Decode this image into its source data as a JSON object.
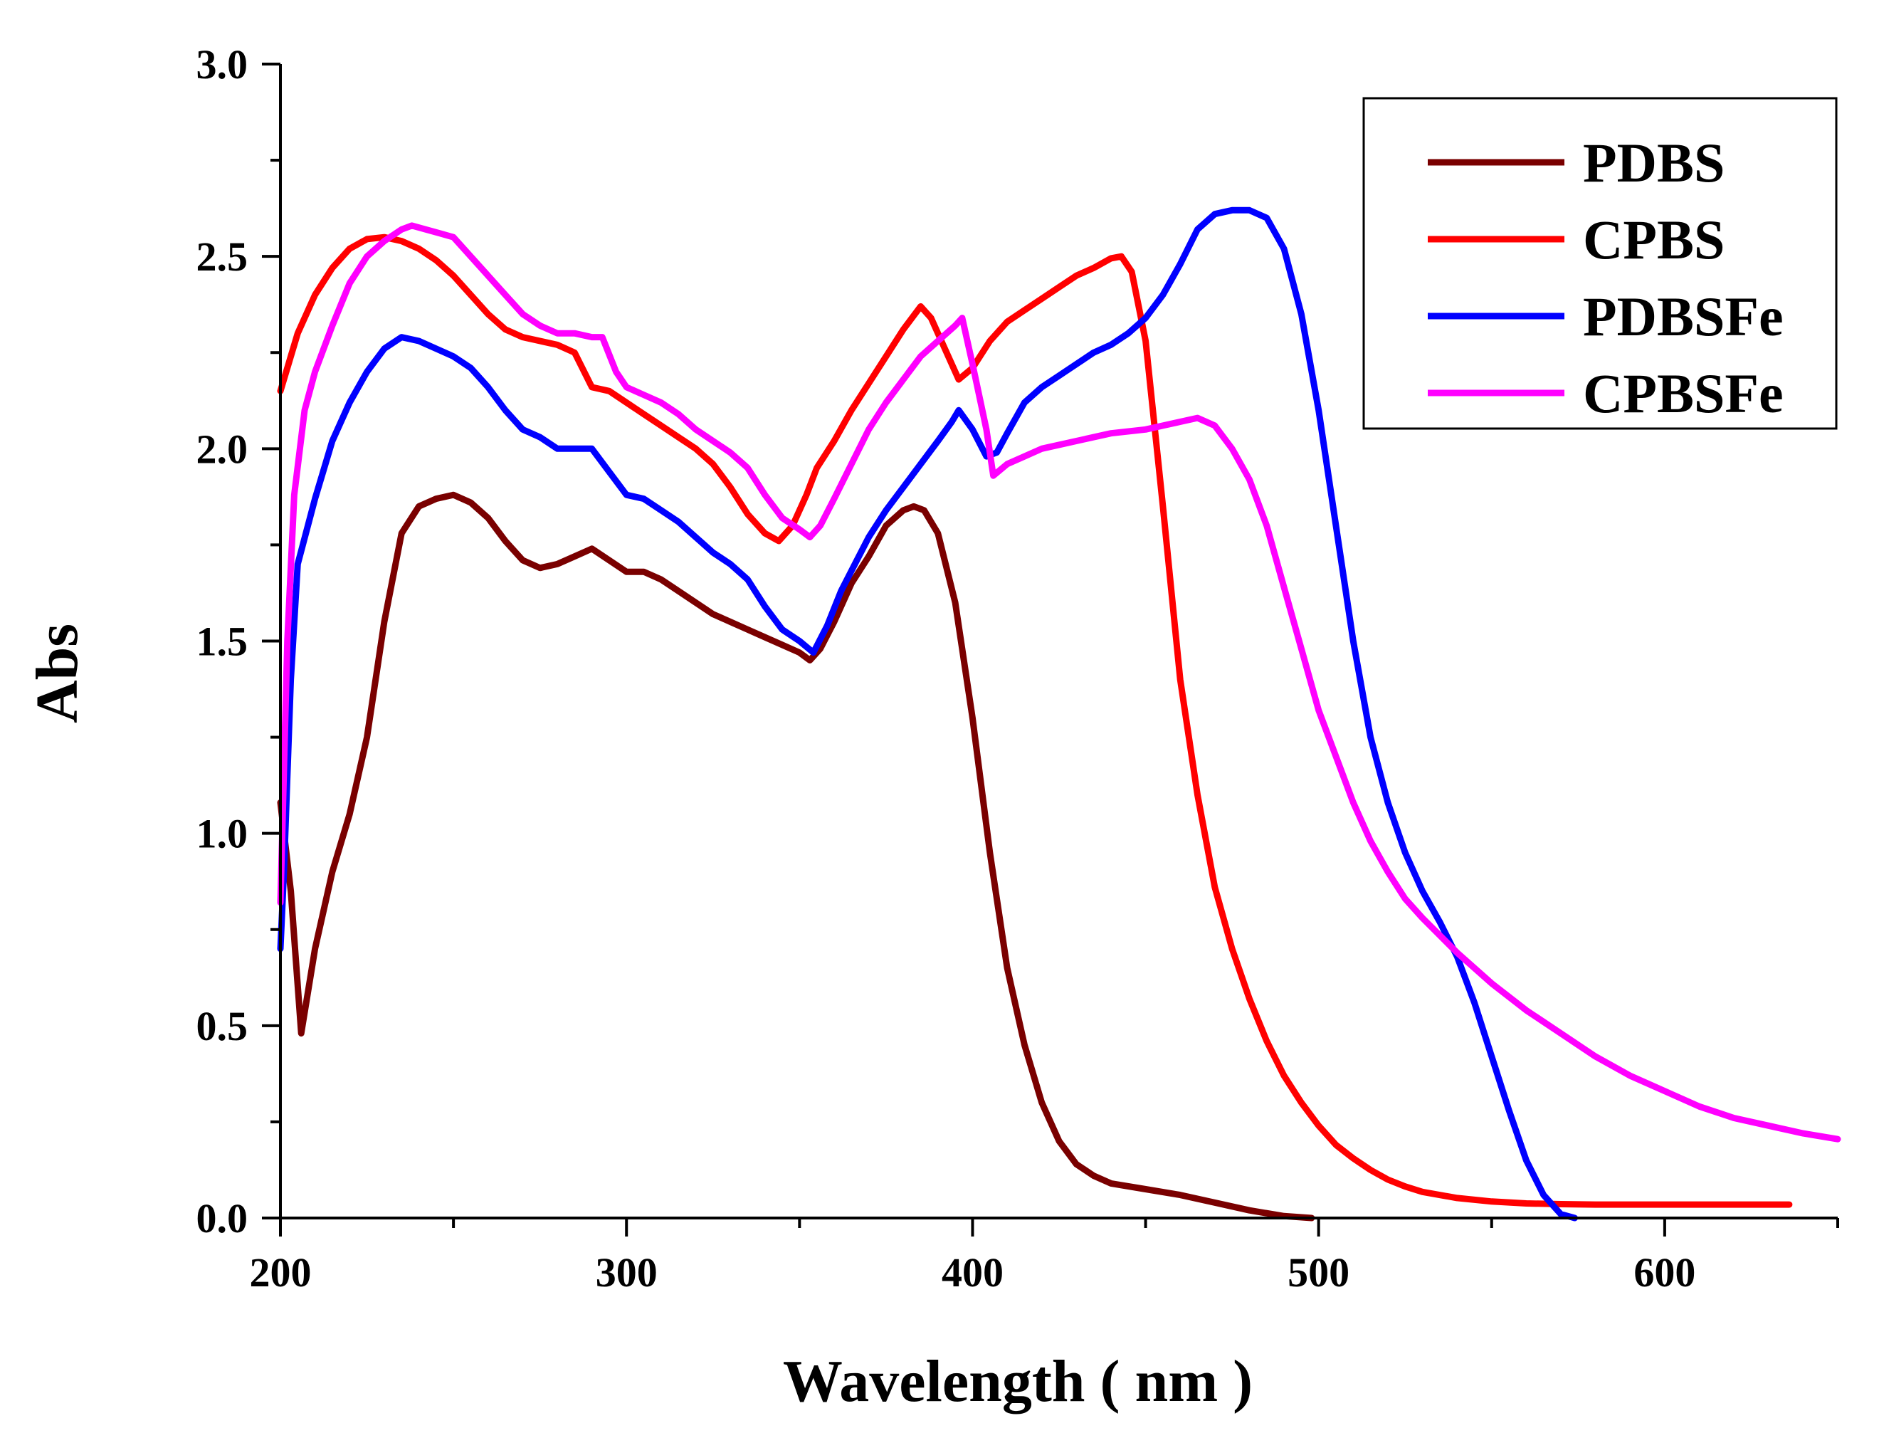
{
  "chart_data": {
    "type": "line",
    "title": "",
    "xlabel": "Wavelength ( nm )",
    "ylabel": "Abs",
    "xlim": [
      200,
      650
    ],
    "ylim": [
      0.0,
      3.0
    ],
    "xticks": [
      200,
      300,
      400,
      500,
      600
    ],
    "xtick_labels": [
      "200",
      "300",
      "400",
      "500",
      "600"
    ],
    "yticks": [
      0.0,
      0.5,
      1.0,
      1.5,
      2.0,
      2.5,
      3.0
    ],
    "ytick_labels": [
      "0.0",
      "0.5",
      "1.0",
      "1.5",
      "2.0",
      "2.5",
      "3.0"
    ],
    "grid": false,
    "legend_position": "top-right",
    "series": [
      {
        "name": "PDBS",
        "color": "#7a0000",
        "points": [
          [
            200,
            1.08
          ],
          [
            203,
            0.85
          ],
          [
            206,
            0.48
          ],
          [
            210,
            0.7
          ],
          [
            215,
            0.9
          ],
          [
            220,
            1.05
          ],
          [
            225,
            1.25
          ],
          [
            230,
            1.55
          ],
          [
            235,
            1.78
          ],
          [
            240,
            1.85
          ],
          [
            245,
            1.87
          ],
          [
            250,
            1.88
          ],
          [
            255,
            1.86
          ],
          [
            260,
            1.82
          ],
          [
            265,
            1.76
          ],
          [
            270,
            1.71
          ],
          [
            275,
            1.69
          ],
          [
            280,
            1.7
          ],
          [
            285,
            1.72
          ],
          [
            290,
            1.74
          ],
          [
            295,
            1.71
          ],
          [
            300,
            1.68
          ],
          [
            305,
            1.68
          ],
          [
            310,
            1.66
          ],
          [
            315,
            1.63
          ],
          [
            320,
            1.6
          ],
          [
            325,
            1.57
          ],
          [
            330,
            1.55
          ],
          [
            335,
            1.53
          ],
          [
            340,
            1.51
          ],
          [
            345,
            1.49
          ],
          [
            350,
            1.47
          ],
          [
            353,
            1.45
          ],
          [
            356,
            1.48
          ],
          [
            360,
            1.55
          ],
          [
            365,
            1.65
          ],
          [
            370,
            1.72
          ],
          [
            375,
            1.8
          ],
          [
            380,
            1.84
          ],
          [
            383,
            1.85
          ],
          [
            386,
            1.84
          ],
          [
            390,
            1.78
          ],
          [
            395,
            1.6
          ],
          [
            400,
            1.3
          ],
          [
            405,
            0.95
          ],
          [
            410,
            0.65
          ],
          [
            415,
            0.45
          ],
          [
            420,
            0.3
          ],
          [
            425,
            0.2
          ],
          [
            430,
            0.14
          ],
          [
            435,
            0.11
          ],
          [
            440,
            0.09
          ],
          [
            450,
            0.075
          ],
          [
            460,
            0.06
          ],
          [
            470,
            0.04
          ],
          [
            480,
            0.02
          ],
          [
            490,
            0.005
          ],
          [
            498,
            0.0
          ]
        ]
      },
      {
        "name": "CPBS",
        "color": "#ff0000",
        "points": [
          [
            200,
            2.15
          ],
          [
            205,
            2.3
          ],
          [
            210,
            2.4
          ],
          [
            215,
            2.47
          ],
          [
            220,
            2.52
          ],
          [
            225,
            2.545
          ],
          [
            230,
            2.55
          ],
          [
            235,
            2.54
          ],
          [
            240,
            2.52
          ],
          [
            245,
            2.49
          ],
          [
            250,
            2.45
          ],
          [
            255,
            2.4
          ],
          [
            260,
            2.35
          ],
          [
            265,
            2.31
          ],
          [
            270,
            2.29
          ],
          [
            275,
            2.28
          ],
          [
            280,
            2.27
          ],
          [
            285,
            2.25
          ],
          [
            290,
            2.16
          ],
          [
            295,
            2.15
          ],
          [
            300,
            2.12
          ],
          [
            305,
            2.09
          ],
          [
            310,
            2.06
          ],
          [
            315,
            2.03
          ],
          [
            320,
            2.0
          ],
          [
            325,
            1.96
          ],
          [
            330,
            1.9
          ],
          [
            335,
            1.83
          ],
          [
            340,
            1.78
          ],
          [
            344,
            1.76
          ],
          [
            348,
            1.8
          ],
          [
            352,
            1.88
          ],
          [
            355,
            1.95
          ],
          [
            360,
            2.02
          ],
          [
            365,
            2.1
          ],
          [
            370,
            2.17
          ],
          [
            375,
            2.24
          ],
          [
            380,
            2.31
          ],
          [
            385,
            2.37
          ],
          [
            388,
            2.34
          ],
          [
            392,
            2.26
          ],
          [
            396,
            2.18
          ],
          [
            400,
            2.21
          ],
          [
            405,
            2.28
          ],
          [
            410,
            2.33
          ],
          [
            415,
            2.36
          ],
          [
            420,
            2.39
          ],
          [
            425,
            2.42
          ],
          [
            430,
            2.45
          ],
          [
            435,
            2.47
          ],
          [
            440,
            2.495
          ],
          [
            443,
            2.5
          ],
          [
            446,
            2.46
          ],
          [
            450,
            2.28
          ],
          [
            455,
            1.85
          ],
          [
            460,
            1.4
          ],
          [
            465,
            1.1
          ],
          [
            470,
            0.86
          ],
          [
            475,
            0.7
          ],
          [
            480,
            0.57
          ],
          [
            485,
            0.46
          ],
          [
            490,
            0.37
          ],
          [
            495,
            0.3
          ],
          [
            500,
            0.24
          ],
          [
            505,
            0.19
          ],
          [
            510,
            0.155
          ],
          [
            515,
            0.125
          ],
          [
            520,
            0.1
          ],
          [
            525,
            0.082
          ],
          [
            530,
            0.068
          ],
          [
            540,
            0.052
          ],
          [
            550,
            0.043
          ],
          [
            560,
            0.038
          ],
          [
            570,
            0.036
          ],
          [
            580,
            0.035
          ],
          [
            600,
            0.035
          ],
          [
            620,
            0.035
          ],
          [
            636,
            0.035
          ]
        ]
      },
      {
        "name": "PDBSFe",
        "color": "#0000ff",
        "points": [
          [
            200,
            0.7
          ],
          [
            201,
            0.9
          ],
          [
            203,
            1.4
          ],
          [
            205,
            1.7
          ],
          [
            210,
            1.87
          ],
          [
            215,
            2.02
          ],
          [
            220,
            2.12
          ],
          [
            225,
            2.2
          ],
          [
            230,
            2.26
          ],
          [
            235,
            2.29
          ],
          [
            240,
            2.28
          ],
          [
            245,
            2.26
          ],
          [
            250,
            2.24
          ],
          [
            255,
            2.21
          ],
          [
            260,
            2.16
          ],
          [
            265,
            2.1
          ],
          [
            270,
            2.05
          ],
          [
            275,
            2.03
          ],
          [
            280,
            2.0
          ],
          [
            285,
            2.0
          ],
          [
            290,
            2.0
          ],
          [
            295,
            1.94
          ],
          [
            300,
            1.88
          ],
          [
            305,
            1.87
          ],
          [
            310,
            1.84
          ],
          [
            315,
            1.81
          ],
          [
            320,
            1.77
          ],
          [
            325,
            1.73
          ],
          [
            330,
            1.7
          ],
          [
            335,
            1.66
          ],
          [
            340,
            1.59
          ],
          [
            345,
            1.53
          ],
          [
            350,
            1.5
          ],
          [
            354,
            1.47
          ],
          [
            358,
            1.54
          ],
          [
            362,
            1.63
          ],
          [
            366,
            1.7
          ],
          [
            370,
            1.77
          ],
          [
            375,
            1.84
          ],
          [
            380,
            1.9
          ],
          [
            385,
            1.96
          ],
          [
            390,
            2.02
          ],
          [
            394,
            2.07
          ],
          [
            396,
            2.1
          ],
          [
            400,
            2.05
          ],
          [
            404,
            1.98
          ],
          [
            407,
            1.99
          ],
          [
            410,
            2.04
          ],
          [
            415,
            2.12
          ],
          [
            420,
            2.16
          ],
          [
            425,
            2.19
          ],
          [
            430,
            2.22
          ],
          [
            435,
            2.25
          ],
          [
            440,
            2.27
          ],
          [
            445,
            2.3
          ],
          [
            450,
            2.34
          ],
          [
            455,
            2.4
          ],
          [
            460,
            2.48
          ],
          [
            465,
            2.57
          ],
          [
            470,
            2.61
          ],
          [
            475,
            2.62
          ],
          [
            480,
            2.62
          ],
          [
            485,
            2.6
          ],
          [
            490,
            2.52
          ],
          [
            495,
            2.35
          ],
          [
            500,
            2.1
          ],
          [
            505,
            1.8
          ],
          [
            510,
            1.5
          ],
          [
            515,
            1.25
          ],
          [
            520,
            1.08
          ],
          [
            525,
            0.95
          ],
          [
            530,
            0.85
          ],
          [
            535,
            0.77
          ],
          [
            540,
            0.68
          ],
          [
            545,
            0.56
          ],
          [
            550,
            0.42
          ],
          [
            555,
            0.28
          ],
          [
            560,
            0.15
          ],
          [
            565,
            0.06
          ],
          [
            570,
            0.01
          ],
          [
            574,
            0.0
          ]
        ]
      },
      {
        "name": "CPBSFe",
        "color": "#ff00ff",
        "points": [
          [
            200,
            0.82
          ],
          [
            202,
            1.5
          ],
          [
            204,
            1.88
          ],
          [
            207,
            2.1
          ],
          [
            210,
            2.2
          ],
          [
            215,
            2.32
          ],
          [
            220,
            2.43
          ],
          [
            225,
            2.5
          ],
          [
            230,
            2.54
          ],
          [
            235,
            2.57
          ],
          [
            238,
            2.58
          ],
          [
            242,
            2.57
          ],
          [
            246,
            2.56
          ],
          [
            250,
            2.55
          ],
          [
            255,
            2.5
          ],
          [
            260,
            2.45
          ],
          [
            265,
            2.4
          ],
          [
            270,
            2.35
          ],
          [
            275,
            2.32
          ],
          [
            280,
            2.3
          ],
          [
            285,
            2.3
          ],
          [
            290,
            2.29
          ],
          [
            293,
            2.29
          ],
          [
            297,
            2.2
          ],
          [
            300,
            2.16
          ],
          [
            305,
            2.14
          ],
          [
            310,
            2.12
          ],
          [
            315,
            2.09
          ],
          [
            320,
            2.05
          ],
          [
            325,
            2.02
          ],
          [
            330,
            1.99
          ],
          [
            335,
            1.95
          ],
          [
            340,
            1.88
          ],
          [
            345,
            1.82
          ],
          [
            350,
            1.79
          ],
          [
            353,
            1.77
          ],
          [
            356,
            1.8
          ],
          [
            360,
            1.87
          ],
          [
            365,
            1.96
          ],
          [
            370,
            2.05
          ],
          [
            375,
            2.12
          ],
          [
            380,
            2.18
          ],
          [
            385,
            2.24
          ],
          [
            390,
            2.28
          ],
          [
            395,
            2.32
          ],
          [
            397,
            2.34
          ],
          [
            400,
            2.22
          ],
          [
            404,
            2.05
          ],
          [
            406,
            1.93
          ],
          [
            410,
            1.96
          ],
          [
            415,
            1.98
          ],
          [
            420,
            2.0
          ],
          [
            430,
            2.02
          ],
          [
            440,
            2.04
          ],
          [
            450,
            2.05
          ],
          [
            455,
            2.06
          ],
          [
            460,
            2.07
          ],
          [
            465,
            2.08
          ],
          [
            470,
            2.06
          ],
          [
            475,
            2.0
          ],
          [
            480,
            1.92
          ],
          [
            485,
            1.8
          ],
          [
            490,
            1.64
          ],
          [
            495,
            1.48
          ],
          [
            500,
            1.32
          ],
          [
            505,
            1.2
          ],
          [
            510,
            1.08
          ],
          [
            515,
            0.98
          ],
          [
            520,
            0.9
          ],
          [
            525,
            0.83
          ],
          [
            530,
            0.78
          ],
          [
            540,
            0.69
          ],
          [
            550,
            0.61
          ],
          [
            560,
            0.54
          ],
          [
            570,
            0.48
          ],
          [
            580,
            0.42
          ],
          [
            590,
            0.37
          ],
          [
            600,
            0.33
          ],
          [
            610,
            0.29
          ],
          [
            620,
            0.26
          ],
          [
            630,
            0.24
          ],
          [
            640,
            0.22
          ],
          [
            650,
            0.205
          ]
        ]
      }
    ]
  }
}
